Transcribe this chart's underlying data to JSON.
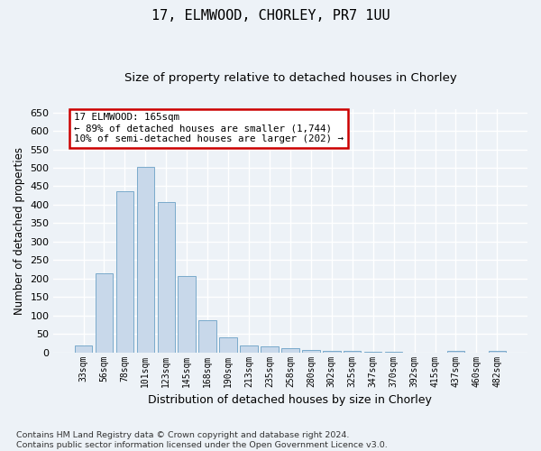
{
  "title_line1": "17, ELMWOOD, CHORLEY, PR7 1UU",
  "title_line2": "Size of property relative to detached houses in Chorley",
  "xlabel": "Distribution of detached houses by size in Chorley",
  "ylabel": "Number of detached properties",
  "footnote": "Contains HM Land Registry data © Crown copyright and database right 2024.\nContains public sector information licensed under the Open Government Licence v3.0.",
  "bar_labels": [
    "33sqm",
    "56sqm",
    "78sqm",
    "101sqm",
    "123sqm",
    "145sqm",
    "168sqm",
    "190sqm",
    "213sqm",
    "235sqm",
    "258sqm",
    "280sqm",
    "302sqm",
    "325sqm",
    "347sqm",
    "370sqm",
    "392sqm",
    "415sqm",
    "437sqm",
    "460sqm",
    "482sqm"
  ],
  "bar_values": [
    18,
    213,
    437,
    502,
    407,
    207,
    87,
    40,
    18,
    16,
    12,
    7,
    5,
    3,
    1,
    1,
    0,
    0,
    4,
    0,
    5
  ],
  "bar_color": "#c8d8ea",
  "bar_edge_color": "#7aaacb",
  "annotation_text": "17 ELMWOOD: 165sqm\n← 89% of detached houses are smaller (1,744)\n10% of semi-detached houses are larger (202) →",
  "annotation_box_facecolor": "#ffffff",
  "annotation_box_edgecolor": "#cc0000",
  "ylim": [
    0,
    660
  ],
  "yticks": [
    0,
    50,
    100,
    150,
    200,
    250,
    300,
    350,
    400,
    450,
    500,
    550,
    600,
    650
  ],
  "bg_color": "#edf2f7",
  "grid_color": "#ffffff",
  "title1_fontsize": 11,
  "title2_fontsize": 9.5,
  "xlabel_fontsize": 9,
  "ylabel_fontsize": 8.5,
  "tick_fontsize": 8,
  "annot_fontsize": 7.8,
  "footnote_fontsize": 6.8
}
